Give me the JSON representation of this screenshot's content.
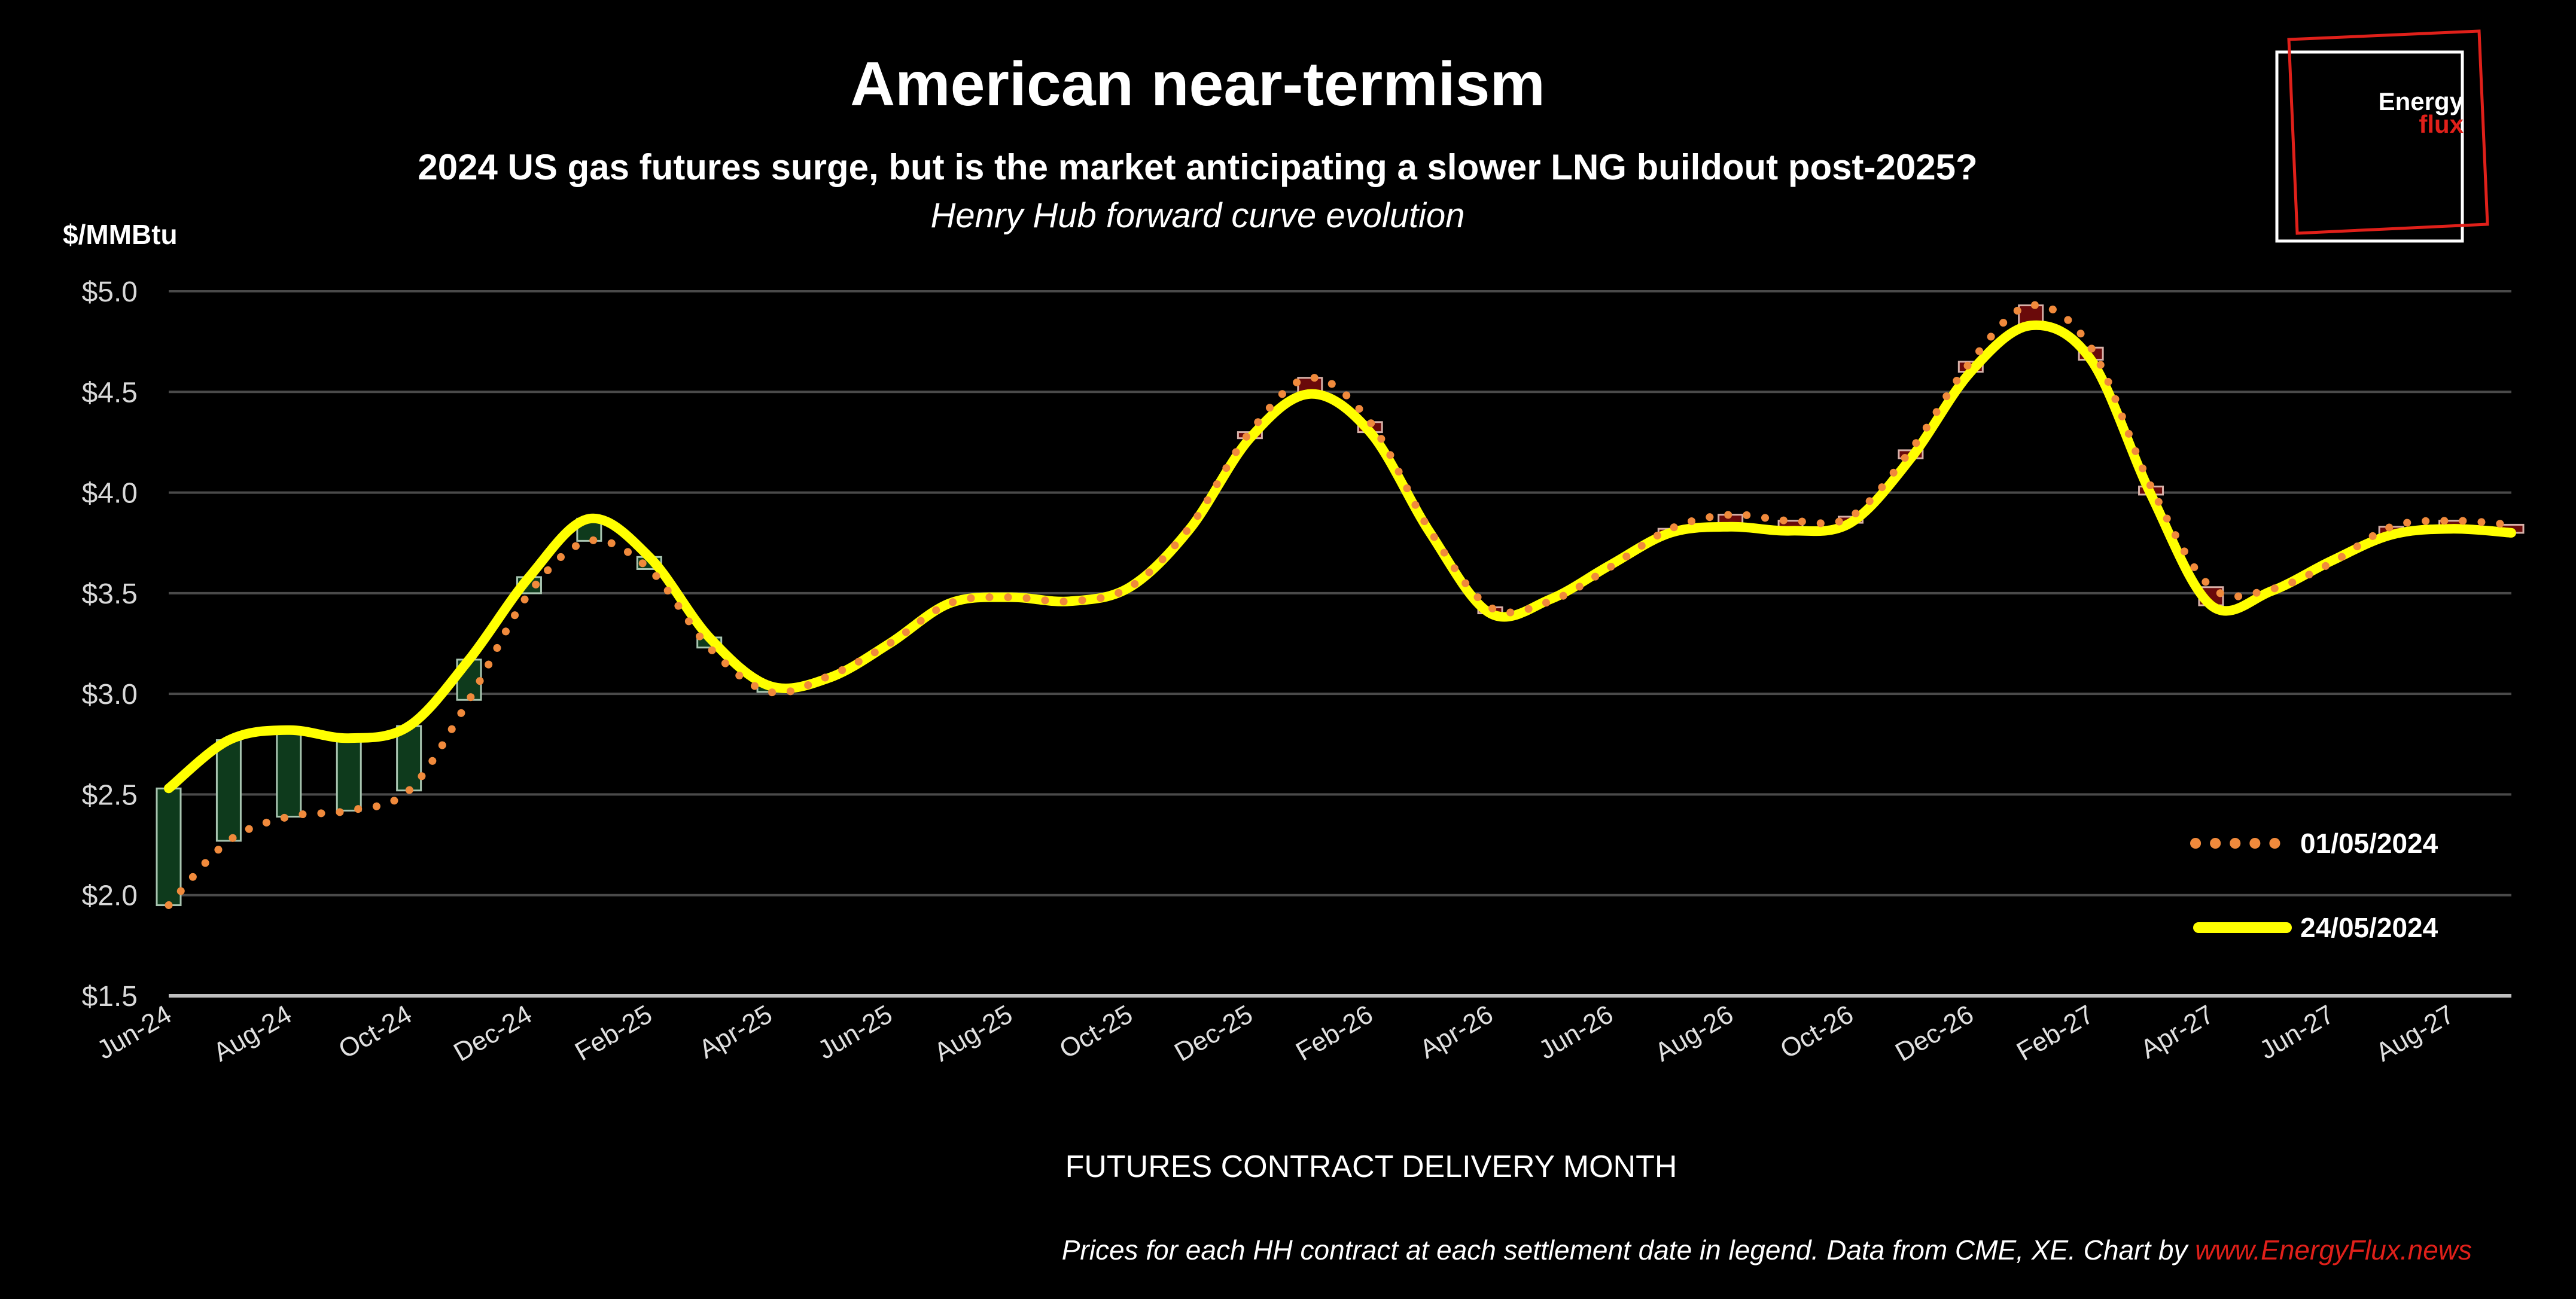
{
  "title": "American near-termism",
  "subtitle": "2024 US gas futures surge, but is the market anticipating a slower LNG buildout post-2025?",
  "subsubtitle": "Henry Hub forward curve evolution",
  "footer_main": "Prices for each HH contract at each settlement date in legend. Data from CME, XE. Chart by ",
  "footer_link": "www.EnergyFlux",
  "footer_link_suffix": ".news",
  "logo": {
    "line1": "Energy",
    "line2": "flux"
  },
  "colors": {
    "series1": "#f08a3c",
    "series2": "#ffff00",
    "up_box": "#0e3a1c",
    "down_box": "#6a0a0a",
    "accent_red": "#e0201a"
  },
  "chart_data": {
    "type": "line",
    "title": "American near-termism",
    "ylabel": "$/MMBtu",
    "xlabel": "FUTURES CONTRACT DELIVERY MONTH",
    "ylim": [
      1.5,
      5.0
    ],
    "ytick_values": [
      1.5,
      2.0,
      2.5,
      3.0,
      3.5,
      4.0,
      4.5,
      5.0
    ],
    "ytick_labels": [
      "$1.5",
      "$2.0",
      "$2.5",
      "$3.0",
      "$3.5",
      "$4.0",
      "$4.5",
      "$5.0"
    ],
    "xtick_labels": [
      "Jun-24",
      "Aug-24",
      "Oct-24",
      "Dec-24",
      "Feb-25",
      "Apr-25",
      "Jun-25",
      "Aug-25",
      "Oct-25",
      "Dec-25",
      "Feb-26",
      "Apr-26",
      "Jun-26",
      "Aug-26",
      "Oct-26",
      "Dec-26",
      "Feb-27",
      "Apr-27",
      "Jun-27",
      "Aug-27"
    ],
    "grid": true,
    "legend_position": "right",
    "months": [
      "Jun-24",
      "Jul-24",
      "Aug-24",
      "Sep-24",
      "Oct-24",
      "Nov-24",
      "Dec-24",
      "Jan-25",
      "Feb-25",
      "Mar-25",
      "Apr-25",
      "May-25",
      "Jun-25",
      "Jul-25",
      "Aug-25",
      "Sep-25",
      "Oct-25",
      "Nov-25",
      "Dec-25",
      "Jan-26",
      "Feb-26",
      "Mar-26",
      "Apr-26",
      "May-26",
      "Jun-26",
      "Jul-26",
      "Aug-26",
      "Sep-26",
      "Oct-26",
      "Nov-26",
      "Dec-26",
      "Jan-27",
      "Feb-27",
      "Mar-27",
      "Apr-27",
      "May-27",
      "Jun-27",
      "Jul-27",
      "Aug-27",
      "Sep-27"
    ],
    "series": [
      {
        "name": "01/05/2024",
        "values": [
          1.95,
          2.27,
          2.39,
          2.42,
          2.52,
          2.97,
          3.5,
          3.76,
          3.62,
          3.23,
          3.01,
          3.09,
          3.25,
          3.45,
          3.48,
          3.46,
          3.53,
          3.83,
          4.3,
          4.57,
          4.35,
          3.81,
          3.43,
          3.46,
          3.63,
          3.82,
          3.89,
          3.86,
          3.88,
          4.21,
          4.65,
          4.93,
          4.72,
          4.03,
          3.53,
          3.52,
          3.65,
          3.83,
          3.86,
          3.84
        ]
      },
      {
        "name": "24/05/2024",
        "values": [
          2.53,
          2.77,
          2.82,
          2.78,
          2.84,
          3.17,
          3.58,
          3.87,
          3.68,
          3.28,
          3.04,
          3.08,
          3.25,
          3.45,
          3.48,
          3.46,
          3.53,
          3.82,
          4.27,
          4.49,
          4.3,
          3.8,
          3.4,
          3.47,
          3.64,
          3.8,
          3.83,
          3.81,
          3.85,
          4.17,
          4.6,
          4.83,
          4.66,
          3.99,
          3.44,
          3.51,
          3.66,
          3.79,
          3.82,
          3.8
        ]
      }
    ]
  }
}
